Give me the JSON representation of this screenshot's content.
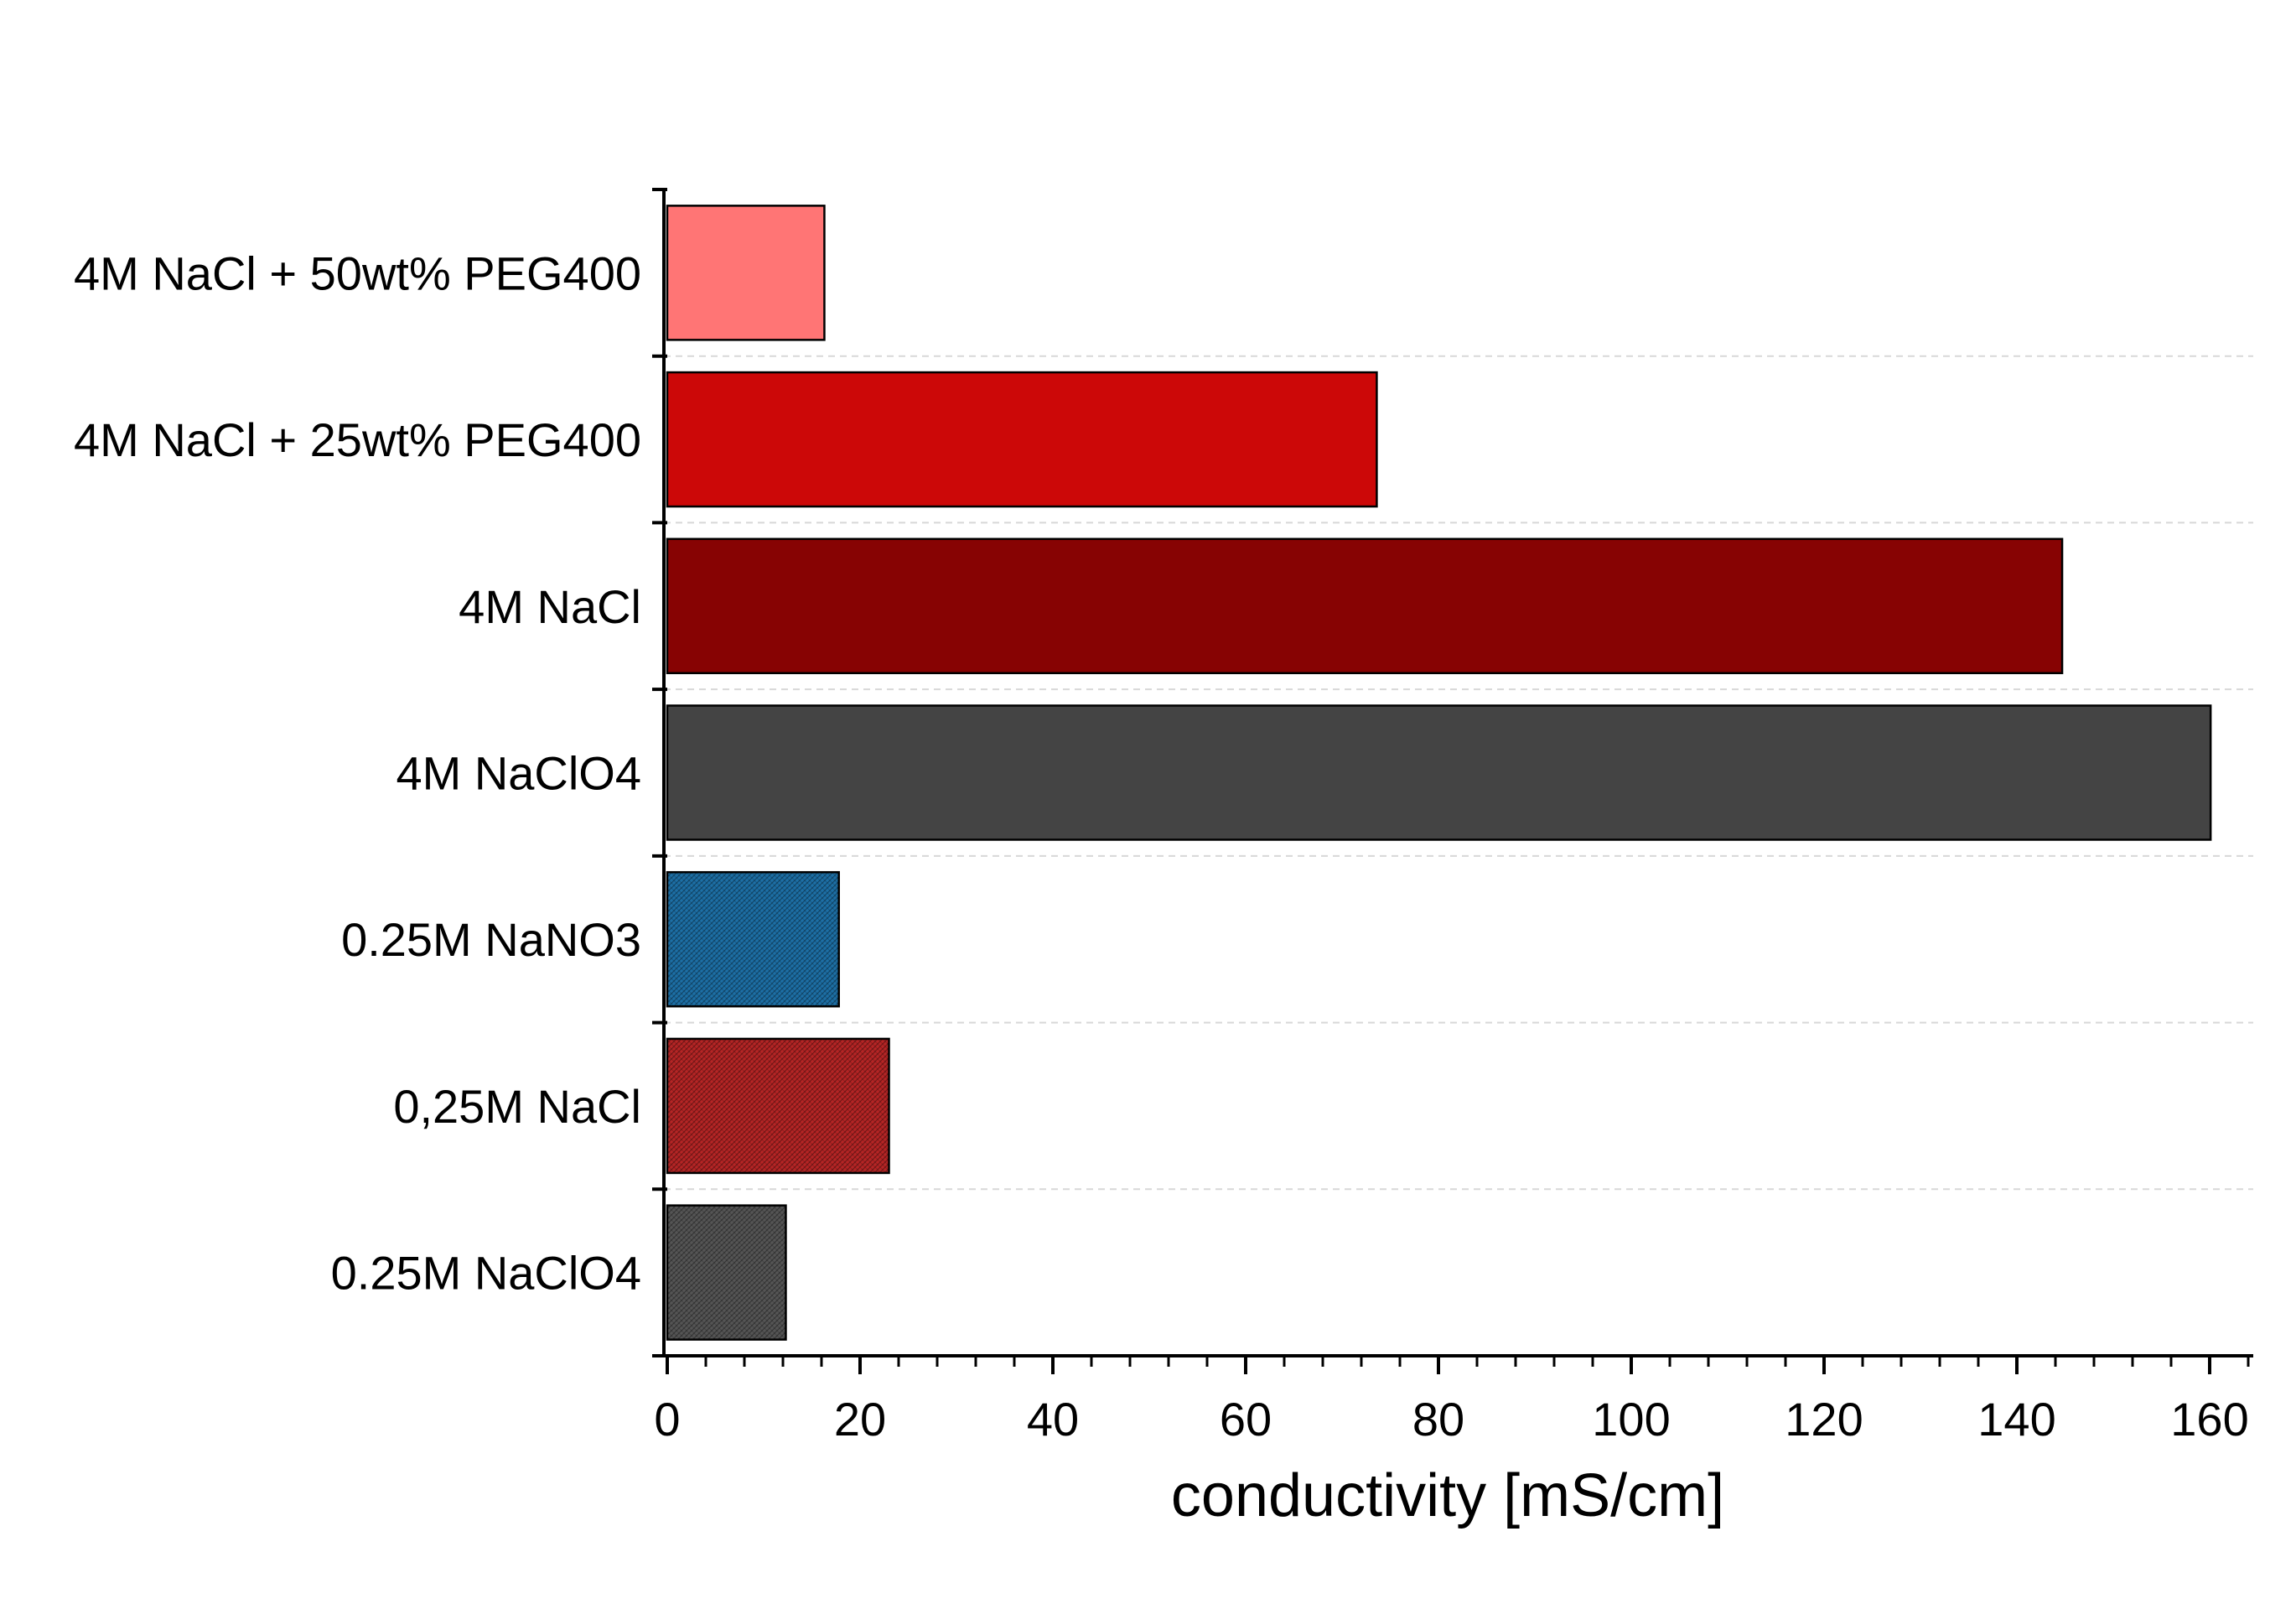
{
  "chart_data": {
    "type": "bar",
    "orientation": "horizontal",
    "categories": [
      "4M NaCl + 50wt% PEG400",
      "4M NaCl + 25wt% PEG400",
      "4M NaCl",
      "4M NaClO4",
      "0.25M NaNO3",
      "0,25M NaCl",
      "0.25M NaClO4"
    ],
    "values": [
      16.3,
      73.6,
      144.7,
      160.1,
      17.8,
      23.0,
      12.3
    ],
    "colors": [
      "#ff7575",
      "#cc0808",
      "#870303",
      "#444444",
      "#1d6fa5",
      "#b52525",
      "#555555"
    ],
    "patterns": [
      "solid",
      "solid",
      "solid",
      "solid",
      "hatch",
      "hatch",
      "hatch"
    ],
    "title": "",
    "xlabel": "conductivity [mS/cm]",
    "ylabel": "",
    "xlim": [
      0,
      165
    ],
    "xticks": [
      0,
      20,
      40,
      60,
      80,
      100,
      120,
      140,
      160
    ],
    "grid": "horizontal-dashed",
    "legend": "none"
  }
}
